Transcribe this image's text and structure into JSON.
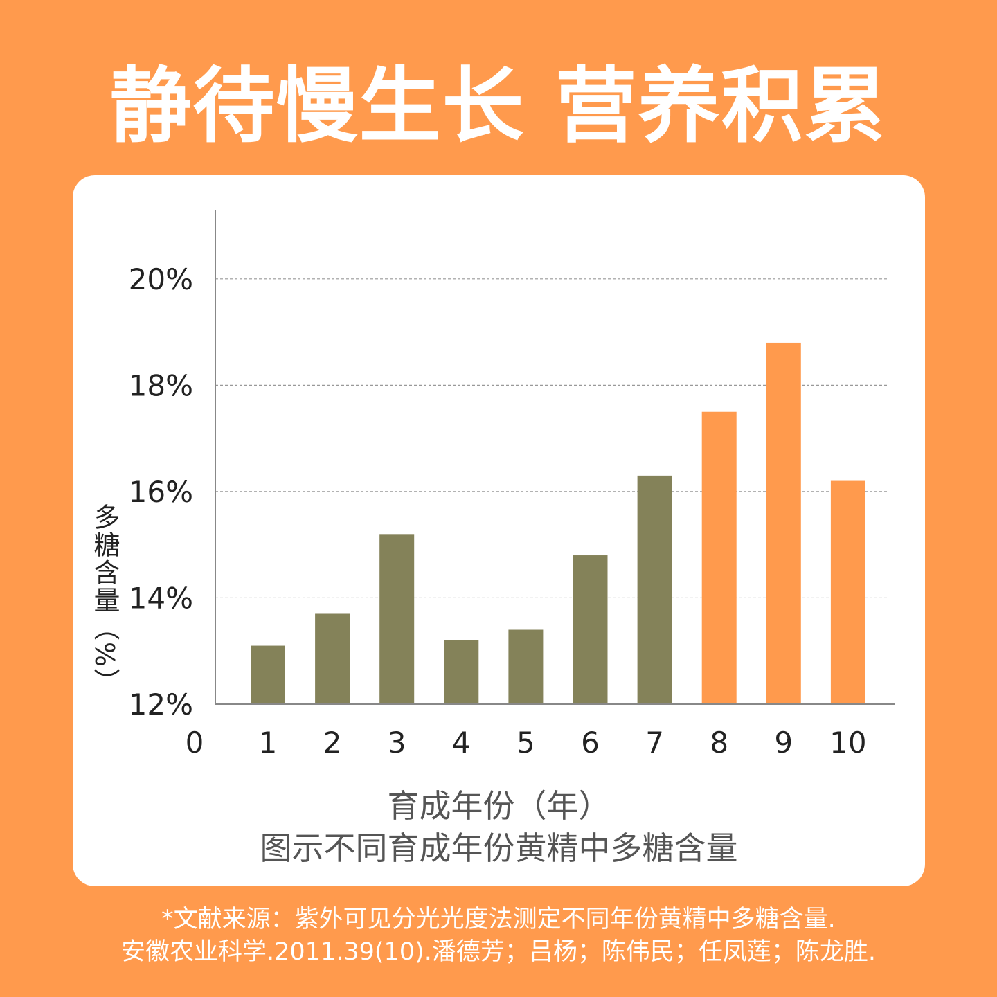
{
  "headline": "静待慢生长 营养积累",
  "chart_data": {
    "type": "bar",
    "x_origin_label": "0",
    "categories": [
      "1",
      "2",
      "3",
      "4",
      "5",
      "6",
      "7",
      "8",
      "9",
      "10"
    ],
    "values": [
      13.1,
      13.7,
      15.2,
      13.2,
      13.4,
      14.8,
      16.3,
      17.5,
      18.8,
      16.2
    ],
    "highlight_from_index": 7,
    "colors": {
      "base": "#848259",
      "highlight": "#FF9A4D",
      "grid": "#999999",
      "axis": "#888888"
    },
    "ylim": [
      12,
      21.3
    ],
    "yticks": [
      12,
      14,
      16,
      18,
      20
    ],
    "ytick_labels": [
      "12%",
      "14%",
      "16%",
      "18%",
      "20%"
    ],
    "ylabel": "多糖含量（%）",
    "xlabel": "育成年份（年）",
    "caption": "图示不同育成年份黄精中多糖含量",
    "grid": "horizontal-dashed"
  },
  "source": {
    "line1": "*文献来源：紫外可见分光光度法测定不同年份黄精中多糖含量.",
    "line2": "安徽农业科学.2011.39(10).潘德芳；吕杨；陈伟民；任凤莲；陈龙胜."
  }
}
